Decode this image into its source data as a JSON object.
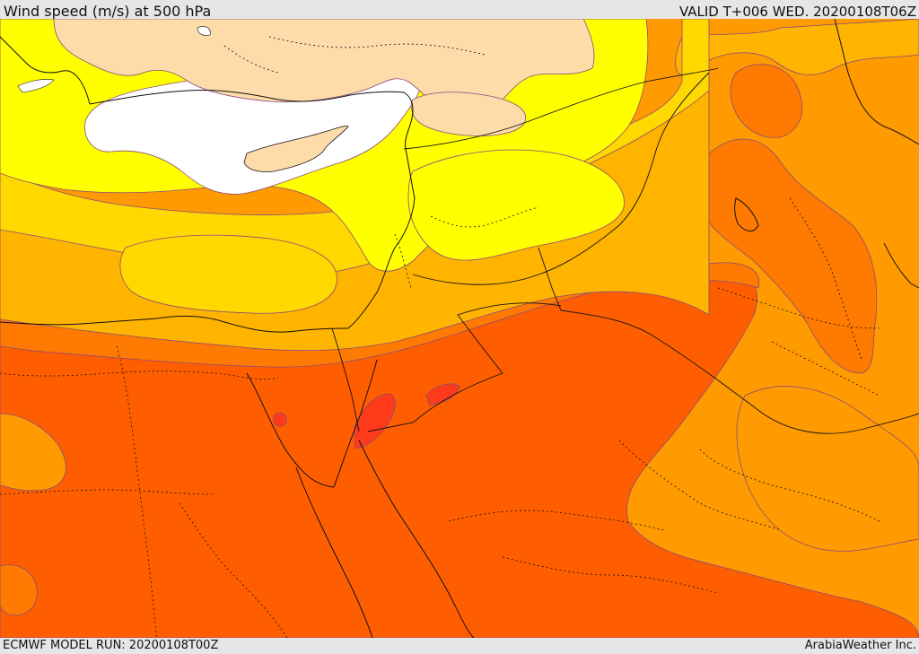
{
  "header": {
    "title": "Wind speed (m/s) at 500 hPa",
    "valid_time": "VALID T+006 WED. 20200108T06Z"
  },
  "footer": {
    "model_run": "ECMWF MODEL RUN: 20200108T00Z",
    "credit": "ArabiaWeather Inc."
  },
  "map": {
    "variable": "wind speed",
    "level": "500 hPa",
    "colors": {
      "calm_white": "#ffffff",
      "land_tan": "#fddcaa",
      "yellow": "#ffff00",
      "gold": "#ffd800",
      "amber": "#ffb400",
      "orange": "#ff9a00",
      "dark_orange": "#ff7a00",
      "red_orange": "#ff5e00",
      "red": "#ff3a1a"
    }
  }
}
